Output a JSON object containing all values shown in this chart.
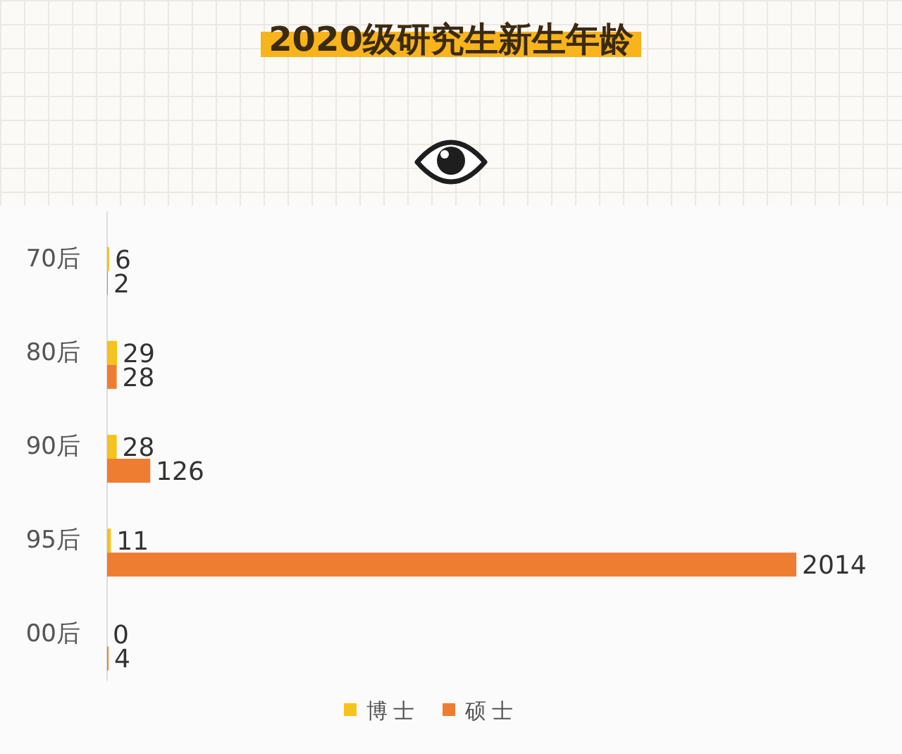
{
  "chart_data": {
    "type": "bar",
    "orientation": "horizontal",
    "title": "2020级研究生新生年龄",
    "categories": [
      "70后",
      "80后",
      "90后",
      "95后",
      "00后"
    ],
    "series": [
      {
        "name": "博士",
        "color": "#f6c21c",
        "values": [
          6,
          29,
          28,
          11,
          0
        ]
      },
      {
        "name": "硕士",
        "color": "#ee7d31",
        "values": [
          2,
          28,
          126,
          2014,
          4
        ]
      }
    ],
    "data_labels": true,
    "legend": "bottom",
    "tick_labels": "y"
  }
}
